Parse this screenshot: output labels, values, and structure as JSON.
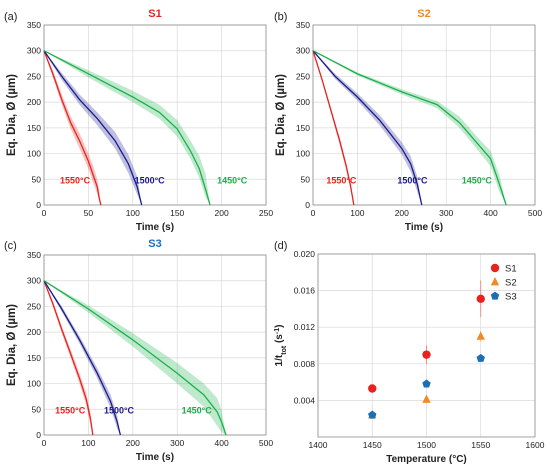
{
  "figure": {
    "colors": {
      "red": "#e8231f",
      "blue": "#1a1a8c",
      "green": "#19b04b",
      "orange": "#f08a24",
      "s3blue": "#1b6fb5",
      "grid": "#d9d9d9",
      "axis": "#8c8c8c"
    }
  },
  "chart_data": [
    {
      "panel": "(a)",
      "type": "line",
      "title": "S1",
      "title_color": "#e8231f",
      "xlabel": "Time (s)",
      "ylabel": "Eq. Dia, Ø (µm)",
      "xlim": [
        0,
        250
      ],
      "ylim": [
        0,
        350
      ],
      "xticks": [
        0,
        50,
        100,
        150,
        200,
        250
      ],
      "yticks": [
        0,
        50,
        100,
        150,
        200,
        250,
        300,
        350
      ],
      "grid": true,
      "series": [
        {
          "name": "1550°C",
          "color": "#e8231f",
          "x": [
            0,
            10,
            20,
            30,
            40,
            50,
            55,
            60,
            62,
            64
          ],
          "y": [
            300,
            255,
            205,
            160,
            125,
            85,
            60,
            35,
            15,
            0
          ],
          "band_lo": [
            300,
            248,
            195,
            148,
            110,
            70,
            45,
            22,
            8,
            0
          ],
          "band_hi": [
            300,
            262,
            215,
            172,
            140,
            100,
            78,
            50,
            30,
            0
          ]
        },
        {
          "name": "1500°C",
          "color": "#1a1a8c",
          "x": [
            0,
            20,
            40,
            60,
            80,
            95,
            105,
            110
          ],
          "y": [
            300,
            250,
            205,
            168,
            125,
            80,
            35,
            0
          ],
          "band_lo": [
            300,
            243,
            195,
            155,
            110,
            62,
            20,
            0
          ],
          "band_hi": [
            300,
            257,
            215,
            180,
            142,
            98,
            55,
            0
          ]
        },
        {
          "name": "1450°C",
          "color": "#19b04b",
          "x": [
            0,
            50,
            100,
            130,
            150,
            165,
            175,
            182,
            187
          ],
          "y": [
            300,
            255,
            210,
            180,
            148,
            105,
            70,
            30,
            0
          ],
          "band_lo": [
            300,
            248,
            200,
            168,
            133,
            90,
            52,
            15,
            0
          ],
          "band_hi": [
            300,
            262,
            222,
            195,
            165,
            125,
            95,
            60,
            0
          ]
        }
      ],
      "annotations": [
        {
          "text": "1550°C",
          "color": "#e8231f",
          "x": 18,
          "y": 42
        },
        {
          "text": "1500°C",
          "color": "#1a1a8c",
          "x": 102,
          "y": 42
        },
        {
          "text": "1450°C",
          "color": "#19b04b",
          "x": 195,
          "y": 42
        }
      ]
    },
    {
      "panel": "(b)",
      "type": "line",
      "title": "S2",
      "title_color": "#f08a24",
      "xlabel": "Time (s)",
      "ylabel": "Eq. Dia, Ø (µm)",
      "xlim": [
        0,
        500
      ],
      "ylim": [
        0,
        350
      ],
      "xticks": [
        0,
        100,
        200,
        300,
        400,
        500
      ],
      "yticks": [
        0,
        50,
        100,
        150,
        200,
        250,
        300,
        350
      ],
      "grid": true,
      "series": [
        {
          "name": "1550°C",
          "color": "#e8231f",
          "x": [
            0,
            20,
            40,
            60,
            75,
            85,
            90,
            92
          ],
          "y": [
            300,
            245,
            185,
            125,
            75,
            35,
            10,
            0
          ],
          "band_lo": [
            300,
            241,
            180,
            118,
            68,
            28,
            5,
            0
          ],
          "band_hi": [
            300,
            249,
            190,
            132,
            82,
            42,
            15,
            0
          ]
        },
        {
          "name": "1500°C",
          "color": "#1a1a8c",
          "x": [
            0,
            50,
            100,
            150,
            200,
            220,
            235,
            245
          ],
          "y": [
            300,
            250,
            210,
            165,
            110,
            80,
            40,
            0
          ],
          "band_lo": [
            300,
            245,
            203,
            155,
            98,
            65,
            25,
            0
          ],
          "band_hi": [
            300,
            255,
            217,
            175,
            122,
            95,
            55,
            0
          ]
        },
        {
          "name": "1450°C",
          "color": "#19b04b",
          "x": [
            0,
            100,
            200,
            280,
            330,
            370,
            400,
            420,
            435
          ],
          "y": [
            300,
            255,
            220,
            195,
            160,
            120,
            90,
            40,
            0
          ],
          "band_lo": [
            300,
            252,
            215,
            188,
            150,
            108,
            75,
            25,
            0
          ],
          "band_hi": [
            300,
            258,
            225,
            202,
            172,
            132,
            105,
            58,
            0
          ]
        }
      ],
      "annotations": [
        {
          "text": "1550°C",
          "color": "#e8231f",
          "x": 30,
          "y": 42
        },
        {
          "text": "1500°C",
          "color": "#1a1a8c",
          "x": 190,
          "y": 42
        },
        {
          "text": "1450°C",
          "color": "#19b04b",
          "x": 335,
          "y": 42
        }
      ]
    },
    {
      "panel": "(c)",
      "type": "line",
      "title": "S3",
      "title_color": "#1b6fb5",
      "xlabel": "Time (s)",
      "ylabel": "Eq. Dia, Ø (µm)",
      "xlim": [
        0,
        500
      ],
      "ylim": [
        0,
        350
      ],
      "xticks": [
        0,
        100,
        200,
        300,
        400,
        500
      ],
      "yticks": [
        0,
        50,
        100,
        150,
        200,
        250,
        300,
        350
      ],
      "grid": true,
      "series": [
        {
          "name": "1550°C",
          "color": "#e8231f",
          "x": [
            0,
            20,
            40,
            60,
            80,
            95,
            105,
            110
          ],
          "y": [
            300,
            255,
            205,
            158,
            110,
            70,
            30,
            0
          ],
          "band_lo": [
            300,
            250,
            198,
            150,
            100,
            58,
            18,
            0
          ],
          "band_hi": [
            300,
            260,
            212,
            166,
            120,
            82,
            42,
            0
          ]
        },
        {
          "name": "1500°C",
          "color": "#1a1a8c",
          "x": [
            0,
            40,
            80,
            120,
            150,
            165,
            172
          ],
          "y": [
            300,
            245,
            185,
            120,
            65,
            25,
            0
          ],
          "band_lo": [
            300,
            240,
            178,
            110,
            52,
            12,
            0
          ],
          "band_hi": [
            300,
            250,
            192,
            130,
            78,
            38,
            0
          ]
        },
        {
          "name": "1450°C",
          "color": "#19b04b",
          "x": [
            0,
            100,
            200,
            300,
            360,
            390,
            400,
            410
          ],
          "y": [
            300,
            245,
            185,
            120,
            78,
            45,
            25,
            0
          ],
          "band_lo": [
            300,
            238,
            172,
            100,
            55,
            18,
            5,
            0
          ],
          "band_hi": [
            300,
            252,
            198,
            140,
            100,
            72,
            48,
            0
          ]
        }
      ],
      "annotations": [
        {
          "text": "1550°C",
          "color": "#e8231f",
          "x": 25,
          "y": 42
        },
        {
          "text": "1500°C",
          "color": "#1a1a8c",
          "x": 135,
          "y": 42
        },
        {
          "text": "1450°C",
          "color": "#19b04b",
          "x": 310,
          "y": 42
        }
      ]
    },
    {
      "panel": "(d)",
      "type": "scatter",
      "title": "",
      "xlabel": "Temperature (°C)",
      "ylabel": "1/t",
      "ylabel_sub": "tot",
      "ylabel_unit": " (s",
      "ylabel_sup": "-1",
      "ylabel_close": ")",
      "xlim": [
        1400,
        1600
      ],
      "ylim": [
        0,
        0.02
      ],
      "xticks": [
        1400,
        1450,
        1500,
        1550,
        1600
      ],
      "yticks": [
        0.004,
        0.008,
        0.012,
        0.016,
        0.02
      ],
      "ytick_labels": [
        "0.004",
        "0.008",
        "0.012",
        "0.016",
        "0.020"
      ],
      "grid": true,
      "legend_position": "top-right",
      "series": [
        {
          "name": "S1",
          "marker": "circle",
          "color": "#e8231f",
          "x": [
            1450,
            1500,
            1550
          ],
          "y": [
            0.0053,
            0.009,
            0.0151
          ],
          "err": [
            0.0004,
            0.001,
            0.002
          ]
        },
        {
          "name": "S2",
          "marker": "triangle",
          "color": "#f08a24",
          "x": [
            1450,
            1500,
            1550
          ],
          "y": [
            0.0024,
            0.0041,
            0.011
          ],
          "err": [
            0.0001,
            0.0002,
            0.0006
          ]
        },
        {
          "name": "S3",
          "marker": "pentagon",
          "color": "#1b6fb5",
          "x": [
            1450,
            1500,
            1550
          ],
          "y": [
            0.0024,
            0.0058,
            0.0086
          ],
          "err": [
            0.0001,
            0.0003,
            0.0003
          ]
        }
      ]
    }
  ]
}
